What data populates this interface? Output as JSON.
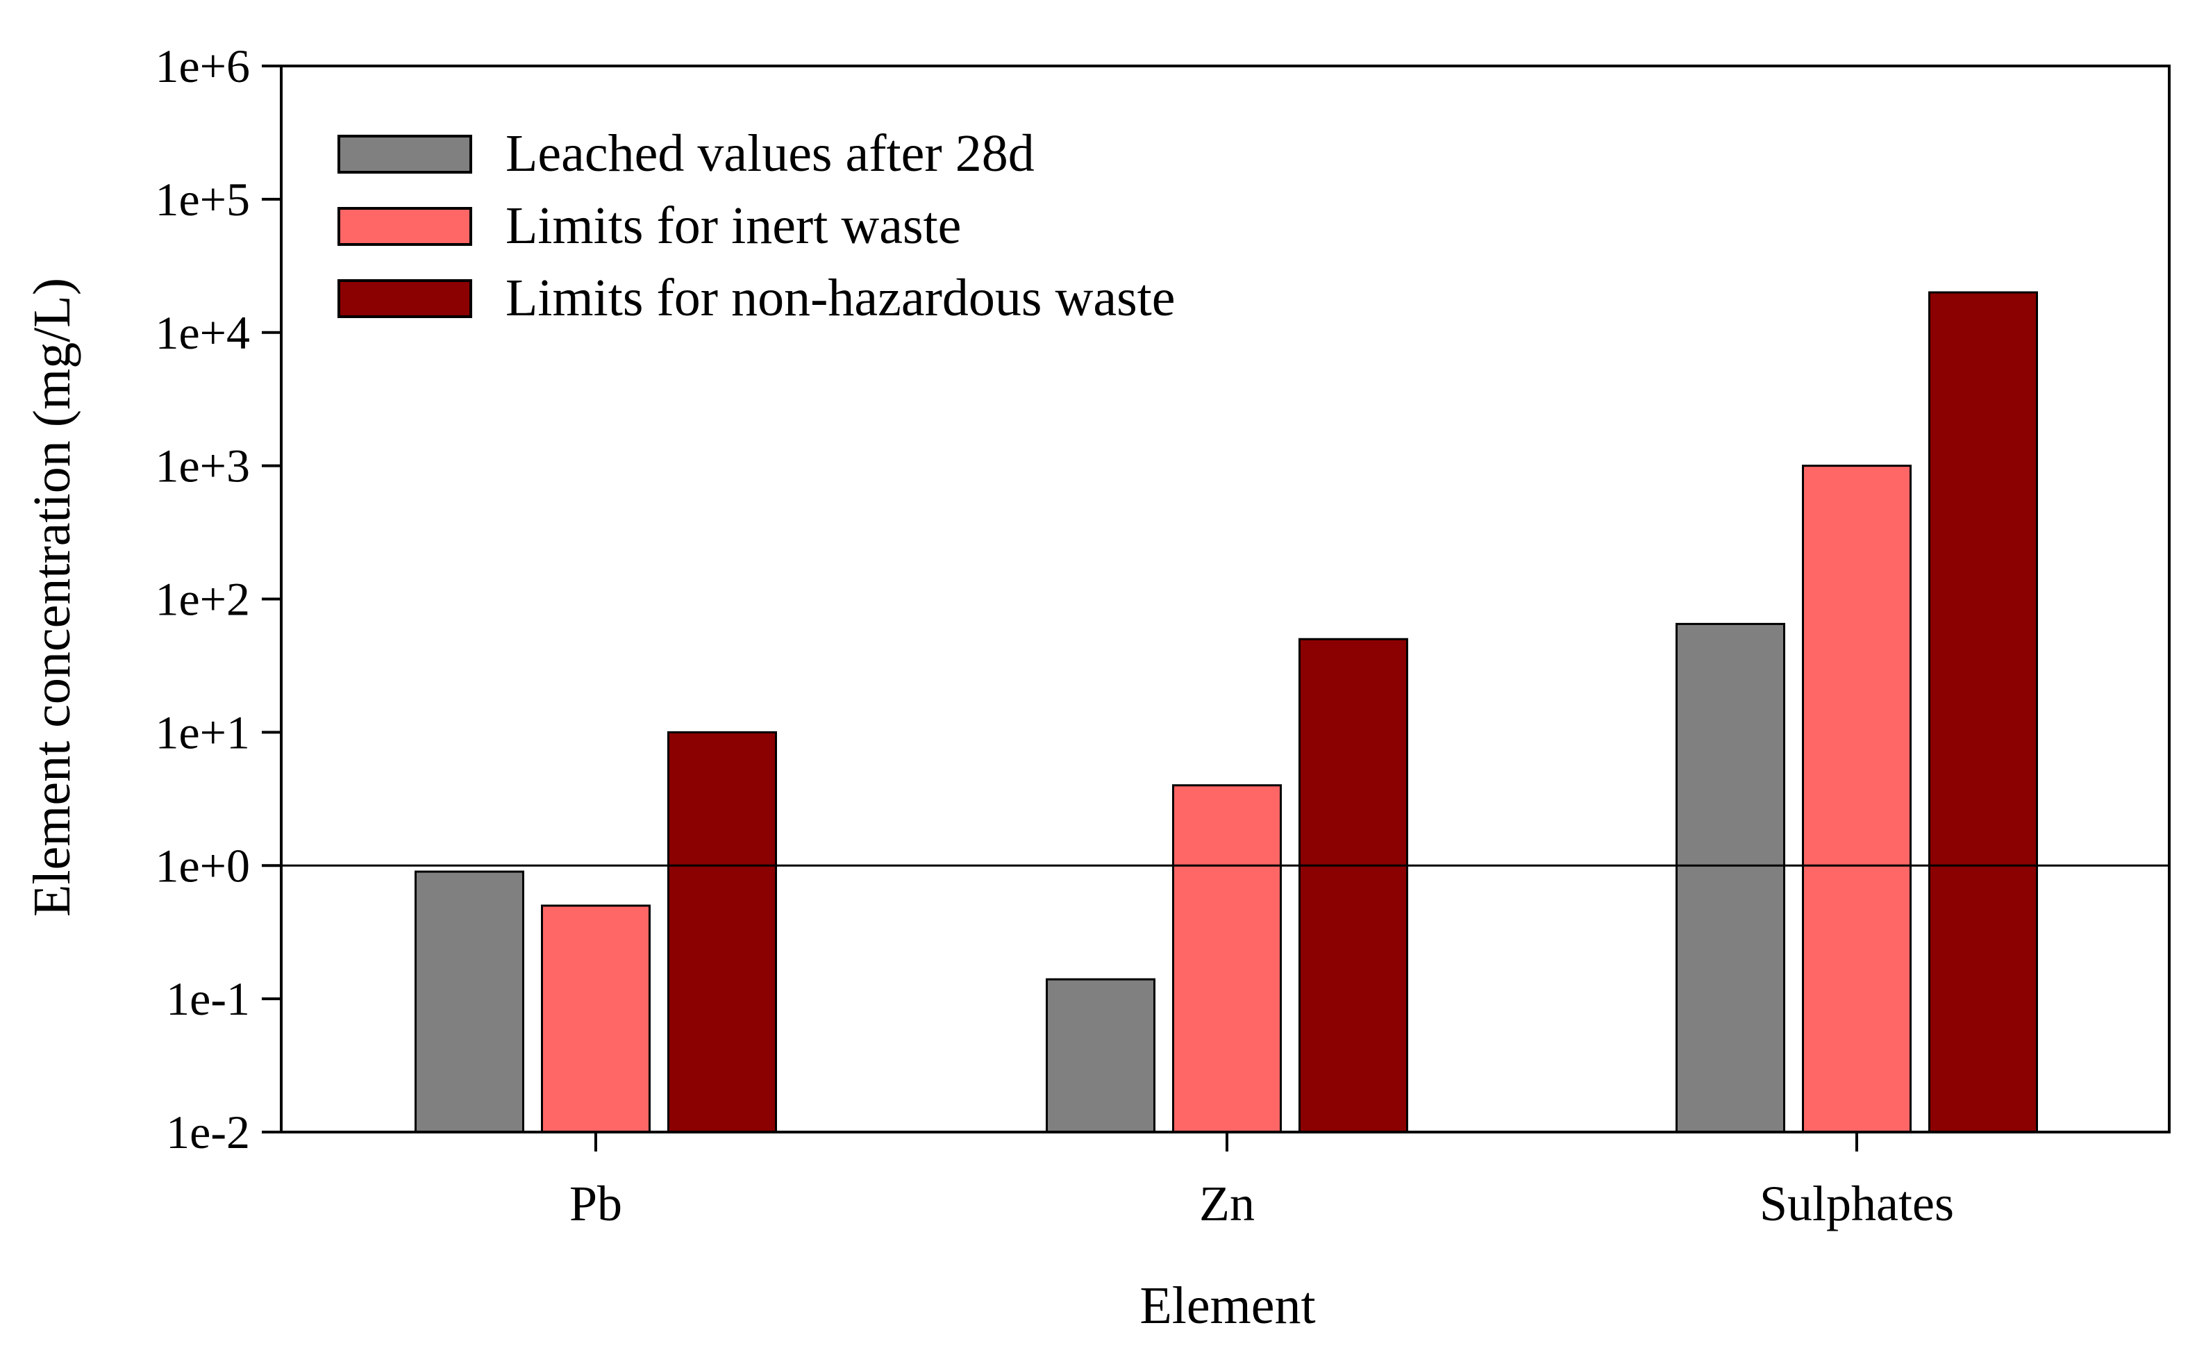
{
  "chart_data": {
    "type": "bar",
    "title": "",
    "xlabel": "Element",
    "ylabel": "Element concentration (mg/L)",
    "yscale": "log",
    "ylim": [
      0.01,
      1000000
    ],
    "y_ticks": [
      0.01,
      0.1,
      1,
      10,
      100,
      1000,
      10000,
      100000,
      1000000
    ],
    "y_tick_labels": [
      "1e-2",
      "1e-1",
      "1e+0",
      "1e+1",
      "1e+2",
      "1e+3",
      "1e+4",
      "1e+5",
      "1e+6"
    ],
    "reference_line": 1,
    "categories": [
      "Pb",
      "Zn",
      "Sulphates"
    ],
    "series": [
      {
        "name": "Leached values after 28d",
        "color": "#808080",
        "values": [
          0.9,
          0.14,
          65
        ]
      },
      {
        "name": "Limits for inert waste",
        "color": "#ff6666",
        "values": [
          0.5,
          4,
          1000
        ]
      },
      {
        "name": "Limits for non-hazardous waste",
        "color": "#8b0000",
        "values": [
          10,
          50,
          20000
        ]
      }
    ],
    "legend_position": "top-left"
  }
}
